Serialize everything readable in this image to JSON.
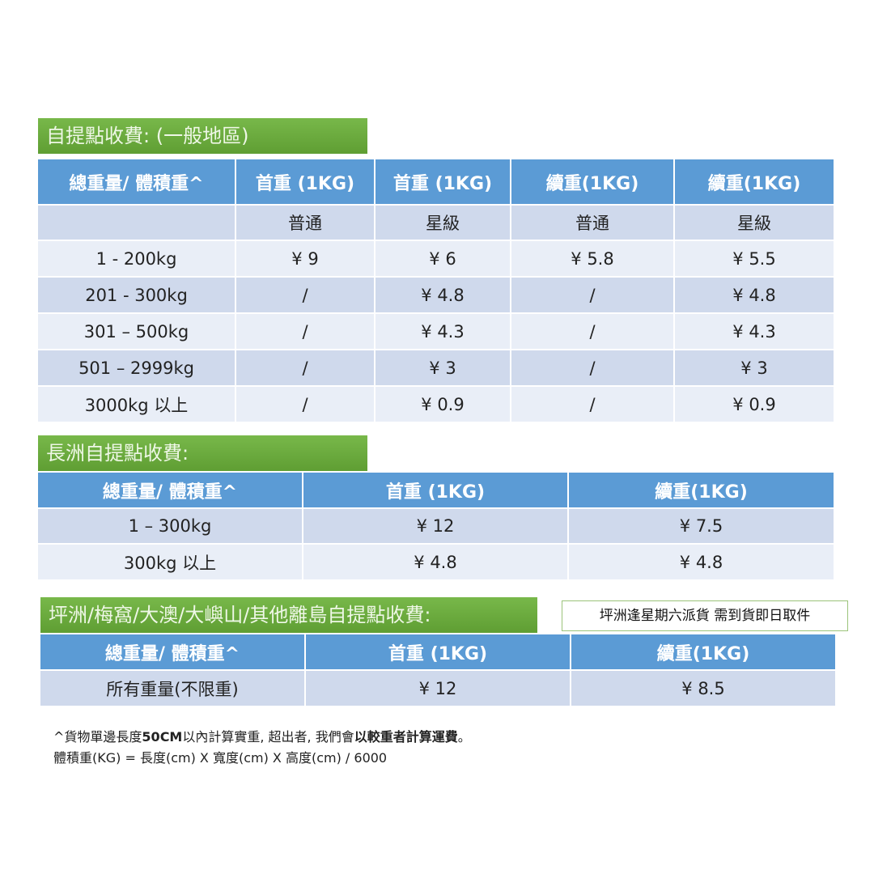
{
  "section1": {
    "title": "自提點收費: (一般地區)",
    "headers": [
      "總重量/ 體積重^",
      "首重 (1KG)",
      "首重 (1KG)",
      "續重(1KG)",
      "續重(1KG)"
    ],
    "subheaders": [
      "",
      "普通",
      "星級",
      "普通",
      "星級"
    ],
    "rows": [
      [
        "1 - 200kg",
        "¥ 9",
        "¥ 6",
        "¥ 5.8",
        "¥ 5.5"
      ],
      [
        "201 - 300kg",
        "/",
        "¥ 4.8",
        "/",
        "¥ 4.8"
      ],
      [
        "301 – 500kg",
        "/",
        "¥ 4.3",
        "/",
        "¥ 4.3"
      ],
      [
        "501 – 2999kg",
        "/",
        "¥ 3",
        "/",
        "¥ 3"
      ],
      [
        "3000kg 以上",
        "/",
        "¥ 0.9",
        "/",
        "¥ 0.9"
      ]
    ]
  },
  "section2": {
    "title": "長洲自提點收費:",
    "headers": [
      "總重量/ 體積重^",
      "首重 (1KG)",
      "續重(1KG)"
    ],
    "rows": [
      [
        "1 – 300kg",
        "¥ 12",
        "¥ 7.5"
      ],
      [
        "300kg 以上",
        "¥ 4.8",
        "¥ 4.8"
      ]
    ]
  },
  "section3": {
    "title": "坪洲/梅窩/大澳/大嶼山/其他離島自提點收費:",
    "note": "坪洲逢星期六派貨 需到貨即日取件",
    "headers": [
      "總重量/ 體積重^",
      "首重 (1KG)",
      "續重(1KG)"
    ],
    "rows": [
      [
        "所有重量(不限重)",
        "¥ 12",
        "¥ 8.5"
      ]
    ]
  },
  "footnote": {
    "line1": [
      "^貨物單邊長度",
      "50CM",
      "以內計算實重, 超出者, 我們會",
      "以較重者計算運費",
      "。"
    ],
    "line2": "體積重(KG) = 長度(cm) X 寬度(cm) X 高度(cm) / 6000"
  },
  "colors": {
    "header": "#5b9bd5",
    "row_dark": "#cfd9ec",
    "row_light": "#e9eef7",
    "title_green": "#6aaa3e"
  }
}
